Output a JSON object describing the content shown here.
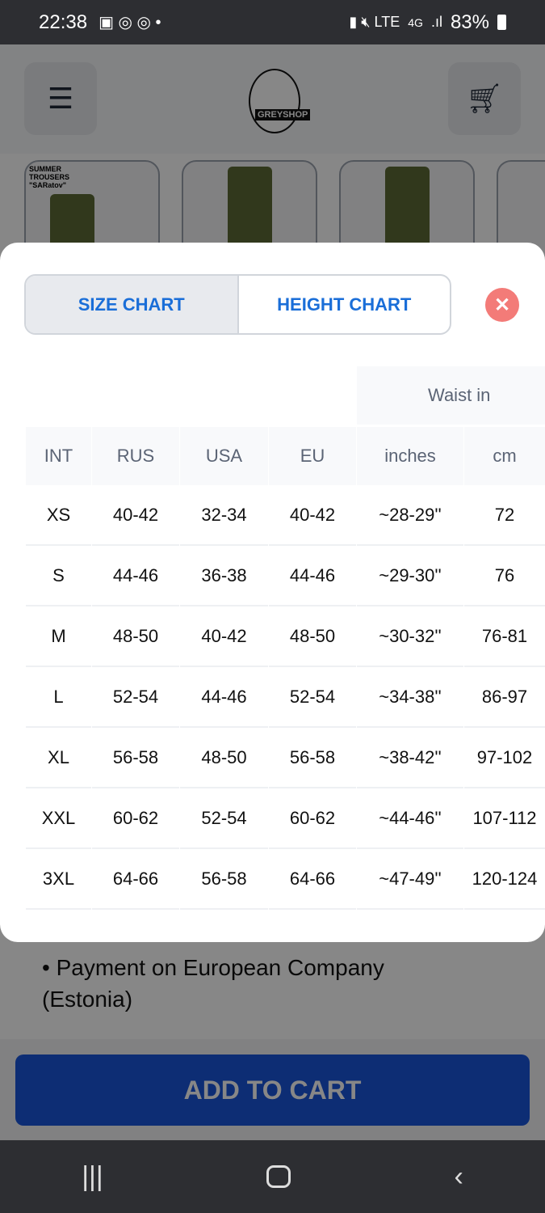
{
  "status_bar": {
    "time": "22:38",
    "battery": "83%",
    "network": "4G",
    "icons": [
      "gallery-icon",
      "chrome-icon",
      "chrome-icon",
      "dot-icon",
      "battery-saver-icon",
      "mute-icon",
      "volte-icon",
      "signal-icon",
      "battery-icon"
    ]
  },
  "header": {
    "menu_icon": "hamburger-icon",
    "logo_text": "GREYSHOP",
    "cart_icon": "cart-icon"
  },
  "thumbnails": {
    "first_caption": "SUMMER TROUSERS \"SARatov\""
  },
  "modal": {
    "tabs": [
      {
        "label": "SIZE CHART",
        "active": true
      },
      {
        "label": "HEIGHT CHART",
        "active": false
      }
    ],
    "close_icon": "close-x-icon",
    "group_header": "Waist in",
    "columns": [
      "INT",
      "RUS",
      "USA",
      "EU",
      "inches",
      "cm"
    ],
    "rows": [
      [
        "XS",
        "40-42",
        "32-34",
        "40-42",
        "~28-29''",
        "72"
      ],
      [
        "S",
        "44-46",
        "36-38",
        "44-46",
        "~29-30''",
        "76"
      ],
      [
        "M",
        "48-50",
        "40-42",
        "48-50",
        "~30-32''",
        "76-81"
      ],
      [
        "L",
        "52-54",
        "44-46",
        "52-54",
        "~34-38''",
        "86-97"
      ],
      [
        "XL",
        "56-58",
        "48-50",
        "56-58",
        "~38-42''",
        "97-102"
      ],
      [
        "XXL",
        "60-62",
        "52-54",
        "60-62",
        "~44-46''",
        "107-112"
      ],
      [
        "3XL",
        "64-66",
        "56-58",
        "64-66",
        "~47-49''",
        "120-124"
      ]
    ]
  },
  "page": {
    "bullet": "Payment on European Company (Estonia)",
    "add_to_cart": "ADD TO CART"
  },
  "colors": {
    "accent": "#1a56db",
    "tab_text": "#1a6ed8",
    "close": "#f37b78"
  }
}
